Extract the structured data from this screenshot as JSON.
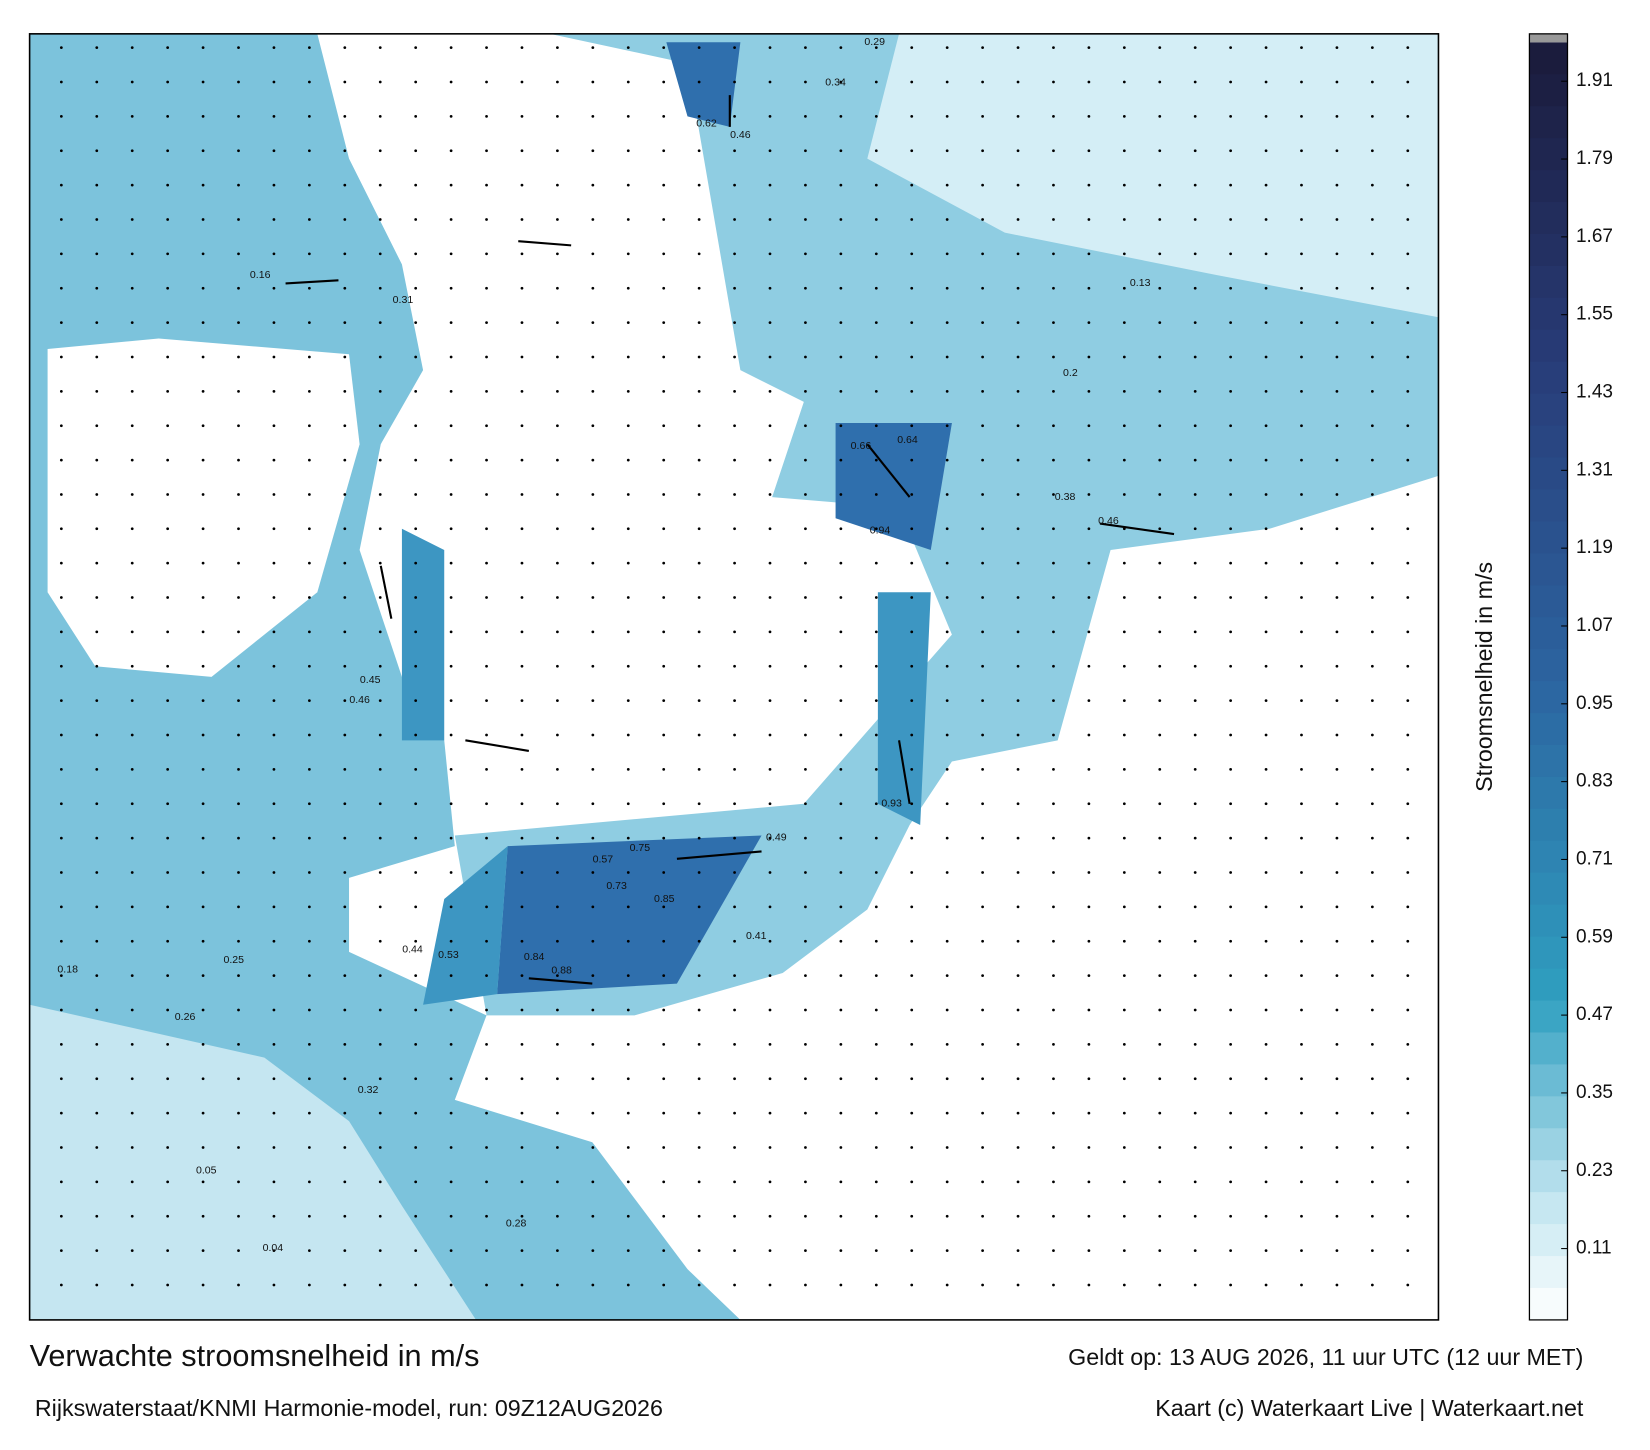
{
  "header": {
    "title": "Verwachte stroomsnelheid in m/s",
    "subtitle": "Rijkswaterstaat/KNMI Harmonie-model, run: 09Z12AUG2026",
    "valid": "Geldt op: 13 AUG 2026, 11 uur UTC (12 uur MET)",
    "credit": "Kaart (c) Waterkaart Live | Waterkaart.net"
  },
  "colorbar": {
    "label": "Stroomsnelheid in m/s",
    "lim": [
      0,
      1.97
    ],
    "ticks": [
      0.11,
      0.23,
      0.35,
      0.47,
      0.59,
      0.71,
      0.83,
      0.95,
      1.07,
      1.19,
      1.31,
      1.43,
      1.55,
      1.67,
      1.79,
      1.91
    ]
  },
  "speed_labels": [
    0.62,
    0.46,
    0.34,
    0.29,
    0.64,
    0.66,
    0.94,
    0.93,
    0.75,
    0.84,
    0.88,
    0.85,
    0.57,
    0.73,
    0.44,
    0.53,
    0.45,
    0.46,
    0.31,
    0.16,
    0.41,
    0.49,
    0.38,
    0.46,
    0.2,
    0.18,
    0.25,
    0.26,
    0.04,
    0.05,
    0.32,
    0.28,
    0.13
  ]
}
